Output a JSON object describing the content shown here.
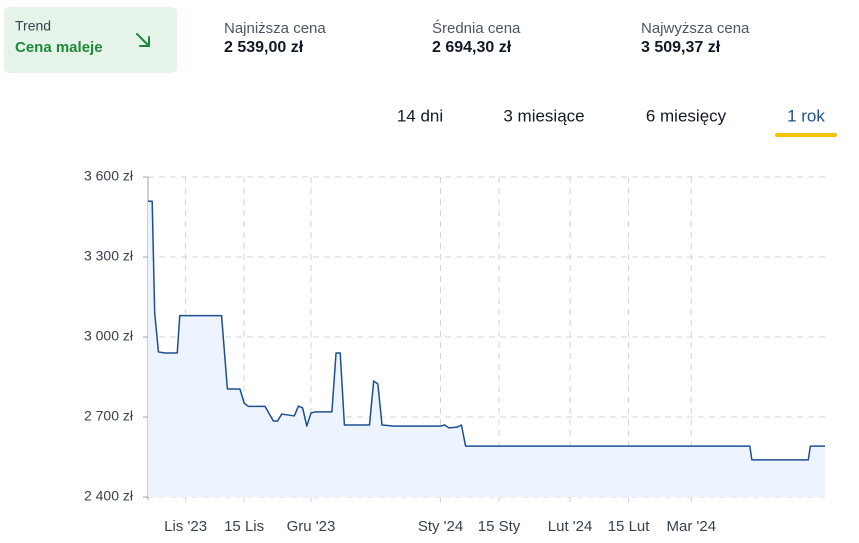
{
  "header": {
    "trend": {
      "title": "Trend",
      "label": "Cena maleje"
    },
    "stats": [
      {
        "label": "Najniższa cena",
        "value": "2 539,00 zł"
      },
      {
        "label": "Średnia cena",
        "value": "2 694,30 zł"
      },
      {
        "label": "Najwyższa cena",
        "value": "3 509,37 zł"
      }
    ]
  },
  "tabs": {
    "items": [
      "14 dni",
      "3 miesiące",
      "6 miesięcy",
      "1 rok"
    ],
    "active": 3
  },
  "chart_data": {
    "type": "line",
    "x": [
      -9,
      -8,
      -7.4,
      -6.5,
      -5,
      -2,
      -1.4,
      8.6,
      10,
      13,
      14,
      15,
      19,
      21,
      22,
      23,
      26,
      27,
      28,
      29,
      30,
      31,
      35,
      36,
      37,
      38,
      44,
      45,
      46,
      47,
      50,
      61,
      62,
      63,
      65,
      66,
      67,
      135,
      135.5,
      149,
      149.5,
      153
    ],
    "series": [
      {
        "color": "#1d4f91",
        "values": [
          3509,
          3509,
          3090,
          2944,
          2940,
          2940,
          3080,
          3080,
          2805,
          2805,
          2752,
          2740,
          2740,
          2685,
          2685,
          2711,
          2704,
          2741,
          2734,
          2666,
          2715,
          2719,
          2719,
          2940,
          2940,
          2670,
          2670,
          2835,
          2824,
          2670,
          2666,
          2666,
          2670,
          2659,
          2662,
          2670,
          2591,
          2591,
          2539,
          2539,
          2591,
          2591
        ]
      }
    ],
    "fill_color": "#edf4fd",
    "xlim": [
      -9,
      153
    ],
    "xticks": [
      {
        "value": 0,
        "label": "Lis '23"
      },
      {
        "value": 14,
        "label": "15 Lis"
      },
      {
        "value": 30,
        "label": "Gru '23"
      },
      {
        "value": 61,
        "label": "Sty '24"
      },
      {
        "value": 75,
        "label": "15 Sty"
      },
      {
        "value": 92,
        "label": "Lut '24"
      },
      {
        "value": 106,
        "label": "15 Lut"
      },
      {
        "value": 121,
        "label": "Mar '24"
      }
    ],
    "ylim": [
      2400,
      3600
    ],
    "yticks": [
      {
        "value": 2400,
        "label": "2 400 zł"
      },
      {
        "value": 2700,
        "label": "2 700 zł"
      },
      {
        "value": 3000,
        "label": "3 000 zł"
      },
      {
        "value": 3300,
        "label": "3 300 zł"
      },
      {
        "value": 3600,
        "label": "3 600 zł"
      }
    ],
    "grid": true
  }
}
